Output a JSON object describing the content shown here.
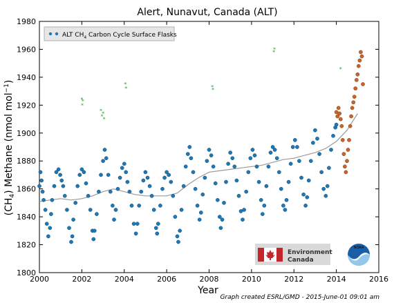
{
  "chart_data": {
    "type": "scatter",
    "title": "Alert, Nunavut, Canada (ALT)",
    "xlabel": "Year",
    "ylabel_parts": [
      "(CH",
      "4",
      ") Methane (nmol mol",
      "−1",
      ")"
    ],
    "xlim": [
      2000,
      2016
    ],
    "ylim": [
      1800,
      1980
    ],
    "xticks": [
      2000,
      2002,
      2004,
      2006,
      2008,
      2010,
      2012,
      2014,
      2016
    ],
    "yticks": [
      1800,
      1820,
      1840,
      1860,
      1880,
      1900,
      1920,
      1940,
      1960,
      1980
    ],
    "grid": false,
    "legend": {
      "position": "top-left",
      "label_parts": [
        "ALT CH",
        "4",
        " Carbon Cycle Surface Flasks"
      ]
    },
    "credit": "Graph created ESRL/GMD - 2015-June-01 09:01 am",
    "logos": {
      "environment_canada": [
        "Environment",
        "Canada"
      ],
      "noaa": "NOAA"
    },
    "colors": {
      "flask": "#1f77b4",
      "flagged": "#2ca02c",
      "preliminary": "#c8642a",
      "trend": "#999999",
      "legend_bg": "#e6e6e6"
    },
    "series": [
      {
        "x": [
          2000.0,
          2000.05,
          2000.1,
          2000.15,
          2000.2,
          2000.28,
          2000.35,
          2000.42,
          2000.5,
          2000.55,
          2000.6,
          2000.7,
          2000.8,
          2000.9,
          2000.98,
          2001.05,
          2001.12,
          2001.2,
          2001.3,
          2001.4,
          2001.5,
          2001.55,
          2001.6,
          2001.7,
          2001.8,
          2001.9,
          2002.0,
          2002.1,
          2002.2,
          2002.3,
          2002.4,
          2002.5,
          2002.55,
          2002.6,
          2002.7,
          2002.8,
          2002.9,
          2003.0,
          2003.08,
          2003.15,
          2003.25,
          2003.35,
          2003.45,
          2003.52,
          2003.6,
          2003.7,
          2003.8,
          2003.9,
          2004.0,
          2004.08,
          2004.15,
          2004.25,
          2004.35,
          2004.45,
          2004.55,
          2004.62,
          2004.7,
          2004.8,
          2004.9,
          2005.0,
          2005.1,
          2005.2,
          2005.3,
          2005.4,
          2005.5,
          2005.55,
          2005.6,
          2005.7,
          2005.8,
          2005.9,
          2006.0,
          2006.1,
          2006.2,
          2006.3,
          2006.4,
          2006.5,
          2006.55,
          2006.62,
          2006.7,
          2006.8,
          2006.9,
          2007.0,
          2007.08,
          2007.15,
          2007.25,
          2007.35,
          2007.45,
          2007.55,
          2007.62,
          2007.7,
          2007.8,
          2007.9,
          2008.0,
          2008.1,
          2008.2,
          2008.3,
          2008.4,
          2008.5,
          2008.55,
          2008.62,
          2008.7,
          2008.8,
          2008.9,
          2009.0,
          2009.1,
          2009.2,
          2009.3,
          2009.4,
          2009.5,
          2009.58,
          2009.65,
          2009.75,
          2009.85,
          2009.95,
          2010.05,
          2010.15,
          2010.25,
          2010.35,
          2010.45,
          2010.52,
          2010.6,
          2010.7,
          2010.8,
          2010.9,
          2011.0,
          2011.1,
          2011.2,
          2011.3,
          2011.4,
          2011.5,
          2011.58,
          2011.65,
          2011.75,
          2011.85,
          2011.95,
          2012.05,
          2012.15,
          2012.25,
          2012.35,
          2012.45,
          2012.55,
          2012.62,
          2012.7,
          2012.8,
          2012.9,
          2013.0,
          2013.1,
          2013.2,
          2013.3,
          2013.4,
          2013.5,
          2013.58,
          2013.65,
          2013.75,
          2013.85,
          2013.95,
          2014.0
        ],
        "y": [
          1862,
          1872,
          1866,
          1858,
          1852,
          1845,
          1835,
          1826,
          1832,
          1842,
          1852,
          1862,
          1872,
          1874,
          1870,
          1866,
          1862,
          1855,
          1845,
          1832,
          1822,
          1826,
          1838,
          1850,
          1862,
          1870,
          1874,
          1872,
          1864,
          1855,
          1845,
          1830,
          1824,
          1830,
          1842,
          1858,
          1870,
          1880,
          1888,
          1882,
          1870,
          1858,
          1848,
          1838,
          1845,
          1860,
          1868,
          1875,
          1878,
          1872,
          1865,
          1858,
          1848,
          1835,
          1828,
          1835,
          1848,
          1858,
          1866,
          1872,
          1868,
          1862,
          1855,
          1845,
          1832,
          1828,
          1835,
          1848,
          1860,
          1868,
          1872,
          1870,
          1865,
          1855,
          1840,
          1826,
          1822,
          1830,
          1845,
          1862,
          1876,
          1885,
          1890,
          1882,
          1872,
          1860,
          1848,
          1838,
          1843,
          1856,
          1868,
          1880,
          1888,
          1884,
          1876,
          1864,
          1852,
          1840,
          1832,
          1838,
          1850,
          1865,
          1878,
          1886,
          1882,
          1876,
          1866,
          1855,
          1844,
          1838,
          1845,
          1858,
          1872,
          1882,
          1888,
          1884,
          1876,
          1865,
          1852,
          1842,
          1848,
          1862,
          1876,
          1886,
          1890,
          1888,
          1882,
          1872,
          1860,
          1848,
          1845,
          1852,
          1865,
          1878,
          1890,
          1895,
          1890,
          1880,
          1868,
          1856,
          1848,
          1854,
          1866,
          1880,
          1893,
          1902,
          1896,
          1885,
          1872,
          1860,
          1855,
          1862,
          1875,
          1888,
          1898,
          1904,
          1906
        ]
      },
      {
        "x": [
          2002.0,
          2002.02,
          2002.05,
          2002.9,
          2002.95,
          2003.0,
          2003.05,
          2004.05,
          2004.08,
          2008.15,
          2008.18,
          2011.05,
          2011.08,
          2014.2
        ],
        "y": [
          1924,
          1920,
          1923,
          1916,
          1912,
          1914,
          1910,
          1935,
          1932,
          1933,
          1931,
          1958,
          1960,
          1946
        ]
      },
      {
        "x": [
          2014.0,
          2014.05,
          2014.1,
          2014.15,
          2014.2,
          2014.25,
          2014.3,
          2014.35,
          2014.4,
          2014.45,
          2014.5,
          2014.55,
          2014.6,
          2014.65,
          2014.7,
          2014.75,
          2014.8,
          2014.85,
          2014.9,
          2014.95,
          2015.0,
          2015.05,
          2015.1,
          2015.15,
          2015.2,
          2015.25
        ],
        "y": [
          1915,
          1912,
          1918,
          1914,
          1910,
          1905,
          1895,
          1885,
          1876,
          1872,
          1880,
          1888,
          1895,
          1905,
          1912,
          1918,
          1922,
          1926,
          1932,
          1938,
          1942,
          1948,
          1952,
          1958,
          1955,
          1935
        ]
      }
    ],
    "trend": {
      "x": [
        2000.0,
        2000.5,
        2001.0,
        2001.5,
        2002.0,
        2002.5,
        2003.0,
        2003.5,
        2004.0,
        2004.5,
        2005.0,
        2005.5,
        2006.0,
        2006.5,
        2007.0,
        2007.5,
        2008.0,
        2008.5,
        2009.0,
        2009.5,
        2010.0,
        2010.5,
        2011.0,
        2011.5,
        2012.0,
        2012.5,
        2013.0,
        2013.5,
        2014.0,
        2014.5,
        2015.0
      ],
      "y": [
        1851,
        1852,
        1853,
        1852,
        1853,
        1855,
        1858,
        1860,
        1858,
        1856,
        1855,
        1855,
        1855,
        1857,
        1863,
        1868,
        1872,
        1873,
        1874,
        1875,
        1876,
        1877,
        1879,
        1881,
        1882,
        1884,
        1886,
        1889,
        1894,
        1902,
        1914
      ]
    }
  }
}
